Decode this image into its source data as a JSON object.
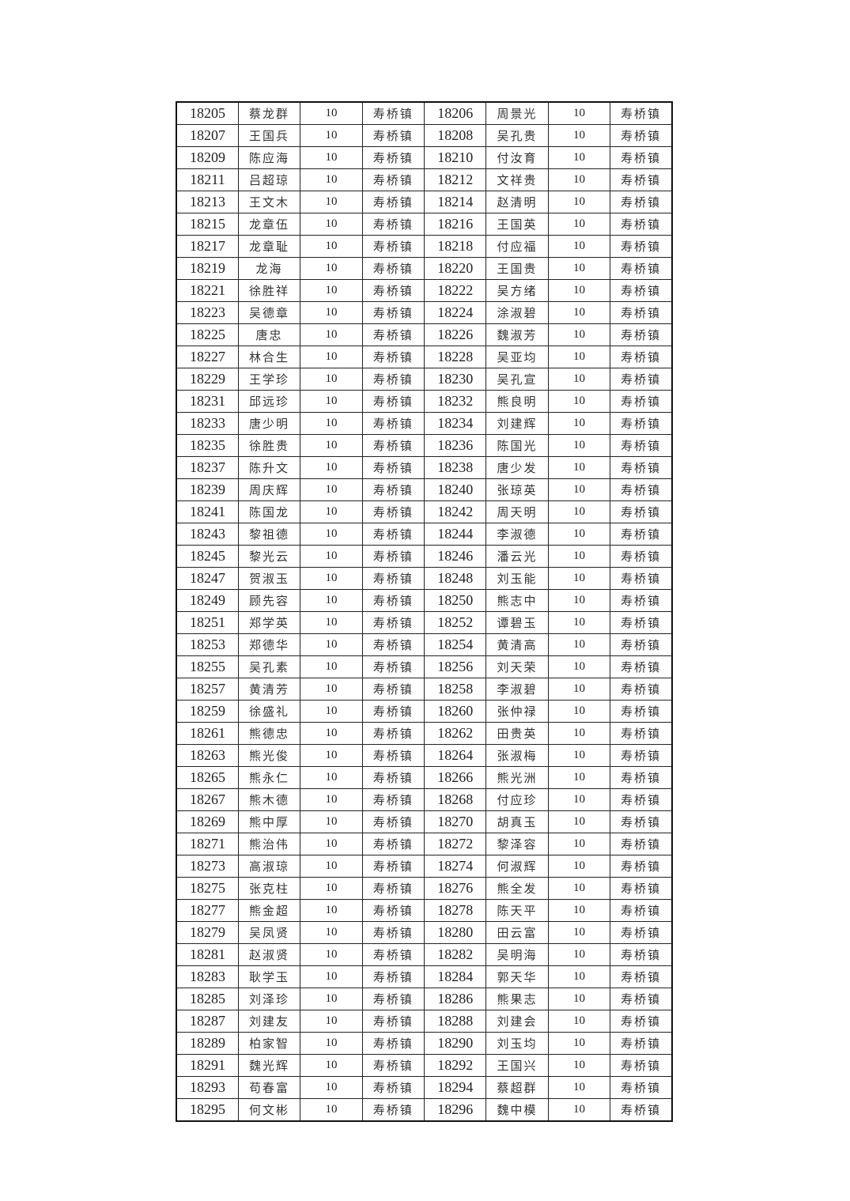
{
  "table": {
    "rows": [
      [
        "18205",
        "蔡龙群",
        "10",
        "寿桥镇",
        "18206",
        "周景光",
        "10",
        "寿桥镇"
      ],
      [
        "18207",
        "王国兵",
        "10",
        "寿桥镇",
        "18208",
        "吴孔贵",
        "10",
        "寿桥镇"
      ],
      [
        "18209",
        "陈应海",
        "10",
        "寿桥镇",
        "18210",
        "付汝育",
        "10",
        "寿桥镇"
      ],
      [
        "18211",
        "吕超琼",
        "10",
        "寿桥镇",
        "18212",
        "文祥贵",
        "10",
        "寿桥镇"
      ],
      [
        "18213",
        "王文木",
        "10",
        "寿桥镇",
        "18214",
        "赵清明",
        "10",
        "寿桥镇"
      ],
      [
        "18215",
        "龙章伍",
        "10",
        "寿桥镇",
        "18216",
        "王国英",
        "10",
        "寿桥镇"
      ],
      [
        "18217",
        "龙章耻",
        "10",
        "寿桥镇",
        "18218",
        "付应福",
        "10",
        "寿桥镇"
      ],
      [
        "18219",
        "龙海",
        "10",
        "寿桥镇",
        "18220",
        "王国贵",
        "10",
        "寿桥镇"
      ],
      [
        "18221",
        "徐胜祥",
        "10",
        "寿桥镇",
        "18222",
        "吴方绪",
        "10",
        "寿桥镇"
      ],
      [
        "18223",
        "吴德章",
        "10",
        "寿桥镇",
        "18224",
        "涂淑碧",
        "10",
        "寿桥镇"
      ],
      [
        "18225",
        "唐忠",
        "10",
        "寿桥镇",
        "18226",
        "魏淑芳",
        "10",
        "寿桥镇"
      ],
      [
        "18227",
        "林合生",
        "10",
        "寿桥镇",
        "18228",
        "吴亚均",
        "10",
        "寿桥镇"
      ],
      [
        "18229",
        "王学珍",
        "10",
        "寿桥镇",
        "18230",
        "吴孔宣",
        "10",
        "寿桥镇"
      ],
      [
        "18231",
        "邱远珍",
        "10",
        "寿桥镇",
        "18232",
        "熊良明",
        "10",
        "寿桥镇"
      ],
      [
        "18233",
        "唐少明",
        "10",
        "寿桥镇",
        "18234",
        "刘建辉",
        "10",
        "寿桥镇"
      ],
      [
        "18235",
        "徐胜贵",
        "10",
        "寿桥镇",
        "18236",
        "陈国光",
        "10",
        "寿桥镇"
      ],
      [
        "18237",
        "陈升文",
        "10",
        "寿桥镇",
        "18238",
        "唐少发",
        "10",
        "寿桥镇"
      ],
      [
        "18239",
        "周庆辉",
        "10",
        "寿桥镇",
        "18240",
        "张琼英",
        "10",
        "寿桥镇"
      ],
      [
        "18241",
        "陈国龙",
        "10",
        "寿桥镇",
        "18242",
        "周天明",
        "10",
        "寿桥镇"
      ],
      [
        "18243",
        "黎祖德",
        "10",
        "寿桥镇",
        "18244",
        "李淑德",
        "10",
        "寿桥镇"
      ],
      [
        "18245",
        "黎光云",
        "10",
        "寿桥镇",
        "18246",
        "潘云光",
        "10",
        "寿桥镇"
      ],
      [
        "18247",
        "贺淑玉",
        "10",
        "寿桥镇",
        "18248",
        "刘玉能",
        "10",
        "寿桥镇"
      ],
      [
        "18249",
        "顾先容",
        "10",
        "寿桥镇",
        "18250",
        "熊志中",
        "10",
        "寿桥镇"
      ],
      [
        "18251",
        "郑学英",
        "10",
        "寿桥镇",
        "18252",
        "谭碧玉",
        "10",
        "寿桥镇"
      ],
      [
        "18253",
        "郑德华",
        "10",
        "寿桥镇",
        "18254",
        "黄清高",
        "10",
        "寿桥镇"
      ],
      [
        "18255",
        "吴孔素",
        "10",
        "寿桥镇",
        "18256",
        "刘天荣",
        "10",
        "寿桥镇"
      ],
      [
        "18257",
        "黄清芳",
        "10",
        "寿桥镇",
        "18258",
        "李淑碧",
        "10",
        "寿桥镇"
      ],
      [
        "18259",
        "徐盛礼",
        "10",
        "寿桥镇",
        "18260",
        "张仲禄",
        "10",
        "寿桥镇"
      ],
      [
        "18261",
        "熊德忠",
        "10",
        "寿桥镇",
        "18262",
        "田贵英",
        "10",
        "寿桥镇"
      ],
      [
        "18263",
        "熊光俊",
        "10",
        "寿桥镇",
        "18264",
        "张淑梅",
        "10",
        "寿桥镇"
      ],
      [
        "18265",
        "熊永仁",
        "10",
        "寿桥镇",
        "18266",
        "熊光洲",
        "10",
        "寿桥镇"
      ],
      [
        "18267",
        "熊木德",
        "10",
        "寿桥镇",
        "18268",
        "付应珍",
        "10",
        "寿桥镇"
      ],
      [
        "18269",
        "熊中厚",
        "10",
        "寿桥镇",
        "18270",
        "胡真玉",
        "10",
        "寿桥镇"
      ],
      [
        "18271",
        "熊治伟",
        "10",
        "寿桥镇",
        "18272",
        "黎泽容",
        "10",
        "寿桥镇"
      ],
      [
        "18273",
        "高淑琼",
        "10",
        "寿桥镇",
        "18274",
        "何淑辉",
        "10",
        "寿桥镇"
      ],
      [
        "18275",
        "张克柱",
        "10",
        "寿桥镇",
        "18276",
        "熊全发",
        "10",
        "寿桥镇"
      ],
      [
        "18277",
        "熊金超",
        "10",
        "寿桥镇",
        "18278",
        "陈天平",
        "10",
        "寿桥镇"
      ],
      [
        "18279",
        "吴凤贤",
        "10",
        "寿桥镇",
        "18280",
        "田云富",
        "10",
        "寿桥镇"
      ],
      [
        "18281",
        "赵淑贤",
        "10",
        "寿桥镇",
        "18282",
        "吴明海",
        "10",
        "寿桥镇"
      ],
      [
        "18283",
        "耿学玉",
        "10",
        "寿桥镇",
        "18284",
        "郭天华",
        "10",
        "寿桥镇"
      ],
      [
        "18285",
        "刘泽珍",
        "10",
        "寿桥镇",
        "18286",
        "熊果志",
        "10",
        "寿桥镇"
      ],
      [
        "18287",
        "刘建友",
        "10",
        "寿桥镇",
        "18288",
        "刘建会",
        "10",
        "寿桥镇"
      ],
      [
        "18289",
        "柏家智",
        "10",
        "寿桥镇",
        "18290",
        "刘玉均",
        "10",
        "寿桥镇"
      ],
      [
        "18291",
        "魏光辉",
        "10",
        "寿桥镇",
        "18292",
        "王国兴",
        "10",
        "寿桥镇"
      ],
      [
        "18293",
        "苟春富",
        "10",
        "寿桥镇",
        "18294",
        "蔡超群",
        "10",
        "寿桥镇"
      ],
      [
        "18295",
        "何文彬",
        "10",
        "寿桥镇",
        "18296",
        "魏中模",
        "10",
        "寿桥镇"
      ]
    ]
  }
}
